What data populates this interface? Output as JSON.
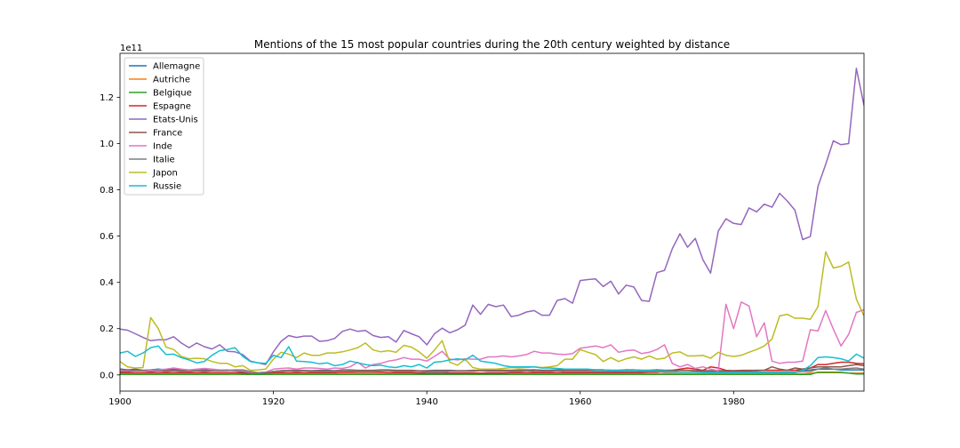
{
  "chart_data": {
    "type": "line",
    "title": "Mentions of the 15 most popular countries during the 20th century weighted by distance",
    "xlabel": "",
    "ylabel": "",
    "y_offset_text": "1e11",
    "xlim": [
      1900,
      1997
    ],
    "ylim": [
      -0.07,
      1.39
    ],
    "x_ticks": [
      1900,
      1920,
      1940,
      1960,
      1980
    ],
    "y_ticks": [
      0.0,
      0.2,
      0.4,
      0.6,
      0.8,
      1.0,
      1.2
    ],
    "y_tick_labels": [
      "0.0",
      "0.2",
      "0.4",
      "0.6",
      "0.8",
      "1.0",
      "1.2"
    ],
    "grid": false,
    "legend_position": "upper-left",
    "x_start": 1900,
    "series": [
      {
        "name": "Allemagne",
        "color": "#1f77b4",
        "values": [
          0.025,
          0.022,
          0.02,
          0.02,
          0.022,
          0.025,
          0.022,
          0.025,
          0.022,
          0.02,
          0.02,
          0.022,
          0.02,
          0.02,
          0.022,
          0.02,
          0.015,
          0.01,
          0.008,
          0.01,
          0.015,
          0.018,
          0.02,
          0.02,
          0.018,
          0.018,
          0.02,
          0.02,
          0.018,
          0.02,
          0.018,
          0.018,
          0.018,
          0.018,
          0.02,
          0.02,
          0.018,
          0.018,
          0.018,
          0.015,
          0.018,
          0.02,
          0.02,
          0.02,
          0.018,
          0.018,
          0.018,
          0.018,
          0.018,
          0.02,
          0.02,
          0.02,
          0.02,
          0.02,
          0.022,
          0.02,
          0.02,
          0.022,
          0.022,
          0.022,
          0.022,
          0.022,
          0.022,
          0.022,
          0.02,
          0.02,
          0.022,
          0.022,
          0.02,
          0.02,
          0.022,
          0.02,
          0.02,
          0.02,
          0.02,
          0.018,
          0.018,
          0.018,
          0.018,
          0.018,
          0.018,
          0.018,
          0.018,
          0.018,
          0.02,
          0.02,
          0.02,
          0.02,
          0.02,
          0.02,
          0.022,
          0.025,
          0.025,
          0.025,
          0.022,
          0.022,
          0.022,
          0.022
        ]
      },
      {
        "name": "Autriche",
        "color": "#ff7f0e",
        "values": [
          0.005,
          0.005,
          0.005,
          0.005,
          0.005,
          0.005,
          0.005,
          0.005,
          0.005,
          0.005,
          0.005,
          0.005,
          0.005,
          0.005,
          0.005,
          0.005,
          0.005,
          0.003,
          0.003,
          0.003,
          0.005,
          0.005,
          0.005,
          0.005,
          0.005,
          0.005,
          0.005,
          0.005,
          0.005,
          0.005,
          0.005,
          0.005,
          0.005,
          0.005,
          0.005,
          0.005,
          0.005,
          0.005,
          0.005,
          0.005,
          0.005,
          0.005,
          0.005,
          0.005,
          0.005,
          0.005,
          0.005,
          0.005,
          0.005,
          0.005,
          0.005,
          0.005,
          0.005,
          0.005,
          0.005,
          0.005,
          0.005,
          0.005,
          0.005,
          0.005,
          0.005,
          0.005,
          0.005,
          0.005,
          0.005,
          0.005,
          0.005,
          0.005,
          0.005,
          0.005,
          0.005,
          0.005,
          0.005,
          0.005,
          0.005,
          0.005,
          0.005,
          0.005,
          0.005,
          0.005,
          0.005,
          0.005,
          0.005,
          0.005,
          0.005,
          0.005,
          0.005,
          0.005,
          0.005,
          0.005,
          0.008,
          0.01,
          0.01,
          0.01,
          0.01,
          0.008,
          0.008,
          0.008
        ]
      },
      {
        "name": "Belgique",
        "color": "#2ca02c",
        "values": [
          0.002,
          0.002,
          0.002,
          0.002,
          0.002,
          0.002,
          0.002,
          0.002,
          0.002,
          0.002,
          0.002,
          0.002,
          0.002,
          0.002,
          0.002,
          0.003,
          0.002,
          0.002,
          0.002,
          0.002,
          0.002,
          0.002,
          0.002,
          0.002,
          0.002,
          0.002,
          0.002,
          0.002,
          0.002,
          0.002,
          0.002,
          0.002,
          0.002,
          0.002,
          0.002,
          0.002,
          0.002,
          0.002,
          0.002,
          0.002,
          0.002,
          0.002,
          0.002,
          0.002,
          0.002,
          0.002,
          0.002,
          0.002,
          0.002,
          0.002,
          0.002,
          0.002,
          0.002,
          0.002,
          0.002,
          0.002,
          0.002,
          0.002,
          0.002,
          0.002,
          0.002,
          0.002,
          0.002,
          0.002,
          0.002,
          0.002,
          0.002,
          0.002,
          0.002,
          0.002,
          0.002,
          0.002,
          0.002,
          0.002,
          0.002,
          0.002,
          0.002,
          0.002,
          0.002,
          0.002,
          0.002,
          0.002,
          0.002,
          0.002,
          0.002,
          0.002,
          0.002,
          0.002,
          0.002,
          0.002,
          0.002,
          0.012,
          0.012,
          0.012,
          0.012,
          0.008,
          0.004,
          0.004
        ]
      },
      {
        "name": "Espagne",
        "color": "#d62728",
        "values": [
          0.01,
          0.01,
          0.01,
          0.01,
          0.01,
          0.01,
          0.01,
          0.01,
          0.01,
          0.01,
          0.01,
          0.01,
          0.01,
          0.01,
          0.01,
          0.01,
          0.008,
          0.008,
          0.008,
          0.008,
          0.01,
          0.01,
          0.01,
          0.01,
          0.01,
          0.01,
          0.01,
          0.01,
          0.01,
          0.012,
          0.012,
          0.012,
          0.012,
          0.012,
          0.012,
          0.01,
          0.01,
          0.01,
          0.01,
          0.008,
          0.008,
          0.008,
          0.008,
          0.008,
          0.008,
          0.008,
          0.008,
          0.008,
          0.008,
          0.008,
          0.008,
          0.01,
          0.01,
          0.01,
          0.01,
          0.01,
          0.01,
          0.01,
          0.01,
          0.01,
          0.01,
          0.01,
          0.01,
          0.01,
          0.01,
          0.01,
          0.01,
          0.01,
          0.01,
          0.012,
          0.012,
          0.015,
          0.02,
          0.025,
          0.03,
          0.025,
          0.02,
          0.035,
          0.03,
          0.02,
          0.018,
          0.018,
          0.018,
          0.02,
          0.02,
          0.02,
          0.02,
          0.02,
          0.02,
          0.025,
          0.03,
          0.045,
          0.045,
          0.05,
          0.055,
          0.055,
          0.05,
          0.048
        ]
      },
      {
        "name": "Etats-Unis",
        "color": "#9467bd",
        "values": [
          0.198,
          0.193,
          0.178,
          0.162,
          0.148,
          0.152,
          0.152,
          0.165,
          0.138,
          0.118,
          0.138,
          0.122,
          0.112,
          0.13,
          0.102,
          0.1,
          0.088,
          0.06,
          0.052,
          0.045,
          0.1,
          0.145,
          0.17,
          0.162,
          0.168,
          0.168,
          0.145,
          0.148,
          0.158,
          0.188,
          0.198,
          0.188,
          0.192,
          0.17,
          0.162,
          0.165,
          0.142,
          0.192,
          0.178,
          0.165,
          0.13,
          0.178,
          0.202,
          0.182,
          0.195,
          0.215,
          0.302,
          0.262,
          0.305,
          0.295,
          0.302,
          0.252,
          0.258,
          0.272,
          0.278,
          0.258,
          0.258,
          0.322,
          0.33,
          0.31,
          0.408,
          0.412,
          0.415,
          0.382,
          0.405,
          0.35,
          0.388,
          0.38,
          0.322,
          0.318,
          0.442,
          0.452,
          0.545,
          0.61,
          0.552,
          0.59,
          0.498,
          0.44,
          0.622,
          0.675,
          0.655,
          0.65,
          0.722,
          0.705,
          0.738,
          0.725,
          0.785,
          0.752,
          0.712,
          0.585,
          0.598,
          0.815,
          0.91,
          1.012,
          0.995,
          1.0,
          1.325,
          1.165
        ]
      },
      {
        "name": "France",
        "color": "#8c564b",
        "values": [
          0.025,
          0.022,
          0.025,
          0.02,
          0.02,
          0.022,
          0.02,
          0.022,
          0.02,
          0.018,
          0.02,
          0.018,
          0.02,
          0.018,
          0.02,
          0.018,
          0.012,
          0.01,
          0.008,
          0.01,
          0.015,
          0.018,
          0.02,
          0.02,
          0.02,
          0.018,
          0.018,
          0.018,
          0.018,
          0.022,
          0.022,
          0.02,
          0.02,
          0.02,
          0.022,
          0.022,
          0.02,
          0.02,
          0.02,
          0.018,
          0.018,
          0.018,
          0.018,
          0.018,
          0.018,
          0.018,
          0.02,
          0.02,
          0.02,
          0.02,
          0.02,
          0.02,
          0.022,
          0.022,
          0.022,
          0.02,
          0.02,
          0.022,
          0.022,
          0.022,
          0.022,
          0.022,
          0.022,
          0.022,
          0.02,
          0.02,
          0.022,
          0.022,
          0.02,
          0.02,
          0.022,
          0.02,
          0.02,
          0.02,
          0.02,
          0.018,
          0.018,
          0.018,
          0.018,
          0.018,
          0.018,
          0.02,
          0.02,
          0.02,
          0.02,
          0.035,
          0.025,
          0.02,
          0.03,
          0.025,
          0.03,
          0.035,
          0.035,
          0.035,
          0.035,
          0.04,
          0.045,
          0.04
        ]
      },
      {
        "name": "Inde",
        "color": "#e377c2",
        "values": [
          0.018,
          0.018,
          0.018,
          0.018,
          0.02,
          0.022,
          0.025,
          0.03,
          0.025,
          0.022,
          0.025,
          0.028,
          0.025,
          0.022,
          0.022,
          0.02,
          0.018,
          0.012,
          0.01,
          0.012,
          0.025,
          0.028,
          0.03,
          0.025,
          0.03,
          0.03,
          0.028,
          0.025,
          0.03,
          0.028,
          0.035,
          0.055,
          0.03,
          0.045,
          0.05,
          0.06,
          0.065,
          0.075,
          0.068,
          0.068,
          0.06,
          0.08,
          0.102,
          0.068,
          0.065,
          0.07,
          0.068,
          0.068,
          0.078,
          0.078,
          0.082,
          0.078,
          0.082,
          0.088,
          0.102,
          0.095,
          0.095,
          0.09,
          0.088,
          0.092,
          0.115,
          0.12,
          0.125,
          0.118,
          0.13,
          0.098,
          0.105,
          0.108,
          0.092,
          0.098,
          0.11,
          0.13,
          0.05,
          0.035,
          0.045,
          0.028,
          0.035,
          0.025,
          0.018,
          0.305,
          0.2,
          0.315,
          0.298,
          0.165,
          0.225,
          0.06,
          0.05,
          0.055,
          0.055,
          0.06,
          0.195,
          0.19,
          0.278,
          0.198,
          0.125,
          0.175,
          0.27,
          0.282
        ]
      },
      {
        "name": "Italie",
        "color": "#7f7f7f",
        "values": [
          0.015,
          0.015,
          0.018,
          0.018,
          0.015,
          0.018,
          0.015,
          0.018,
          0.015,
          0.015,
          0.018,
          0.015,
          0.018,
          0.018,
          0.018,
          0.022,
          0.022,
          0.015,
          0.01,
          0.012,
          0.015,
          0.015,
          0.018,
          0.015,
          0.018,
          0.015,
          0.015,
          0.015,
          0.015,
          0.018,
          0.018,
          0.015,
          0.015,
          0.015,
          0.018,
          0.018,
          0.015,
          0.015,
          0.015,
          0.015,
          0.012,
          0.012,
          0.012,
          0.015,
          0.015,
          0.015,
          0.015,
          0.018,
          0.015,
          0.015,
          0.015,
          0.015,
          0.015,
          0.018,
          0.015,
          0.015,
          0.015,
          0.018,
          0.015,
          0.015,
          0.015,
          0.015,
          0.015,
          0.015,
          0.015,
          0.015,
          0.015,
          0.015,
          0.015,
          0.015,
          0.015,
          0.012,
          0.012,
          0.012,
          0.012,
          0.012,
          0.012,
          0.012,
          0.012,
          0.012,
          0.012,
          0.012,
          0.012,
          0.012,
          0.012,
          0.012,
          0.012,
          0.012,
          0.012,
          0.015,
          0.015,
          0.025,
          0.03,
          0.025,
          0.025,
          0.028,
          0.03,
          0.025
        ]
      },
      {
        "name": "Japon",
        "color": "#bcbd22",
        "values": [
          0.058,
          0.035,
          0.03,
          0.032,
          0.248,
          0.2,
          0.12,
          0.11,
          0.08,
          0.07,
          0.072,
          0.07,
          0.058,
          0.05,
          0.05,
          0.035,
          0.04,
          0.02,
          0.022,
          0.025,
          0.068,
          0.098,
          0.09,
          0.075,
          0.095,
          0.085,
          0.085,
          0.095,
          0.095,
          0.1,
          0.108,
          0.118,
          0.138,
          0.108,
          0.1,
          0.105,
          0.098,
          0.128,
          0.12,
          0.1,
          0.072,
          0.108,
          0.148,
          0.055,
          0.042,
          0.068,
          0.032,
          0.025,
          0.025,
          0.025,
          0.028,
          0.032,
          0.03,
          0.032,
          0.035,
          0.032,
          0.035,
          0.04,
          0.068,
          0.068,
          0.11,
          0.098,
          0.088,
          0.058,
          0.075,
          0.058,
          0.07,
          0.078,
          0.068,
          0.082,
          0.068,
          0.072,
          0.095,
          0.1,
          0.082,
          0.082,
          0.085,
          0.072,
          0.098,
          0.085,
          0.08,
          0.085,
          0.098,
          0.11,
          0.125,
          0.155,
          0.255,
          0.262,
          0.245,
          0.245,
          0.24,
          0.295,
          0.532,
          0.462,
          0.47,
          0.488,
          0.328,
          0.255
        ]
      },
      {
        "name": "Russie",
        "color": "#17becf",
        "values": [
          0.095,
          0.102,
          0.08,
          0.095,
          0.118,
          0.125,
          0.088,
          0.09,
          0.075,
          0.065,
          0.052,
          0.058,
          0.085,
          0.105,
          0.11,
          0.118,
          0.08,
          0.058,
          0.052,
          0.05,
          0.085,
          0.075,
          0.122,
          0.06,
          0.058,
          0.055,
          0.048,
          0.052,
          0.04,
          0.045,
          0.06,
          0.052,
          0.045,
          0.04,
          0.042,
          0.035,
          0.032,
          0.04,
          0.035,
          0.045,
          0.03,
          0.055,
          0.058,
          0.065,
          0.07,
          0.065,
          0.085,
          0.06,
          0.055,
          0.05,
          0.04,
          0.035,
          0.035,
          0.035,
          0.035,
          0.03,
          0.03,
          0.028,
          0.025,
          0.025,
          0.025,
          0.025,
          0.022,
          0.022,
          0.02,
          0.02,
          0.02,
          0.022,
          0.02,
          0.02,
          0.018,
          0.018,
          0.015,
          0.012,
          0.012,
          0.012,
          0.01,
          0.01,
          0.01,
          0.01,
          0.01,
          0.01,
          0.01,
          0.01,
          0.01,
          0.01,
          0.01,
          0.01,
          0.01,
          0.02,
          0.04,
          0.075,
          0.078,
          0.075,
          0.07,
          0.06,
          0.09,
          0.072
        ]
      }
    ]
  }
}
